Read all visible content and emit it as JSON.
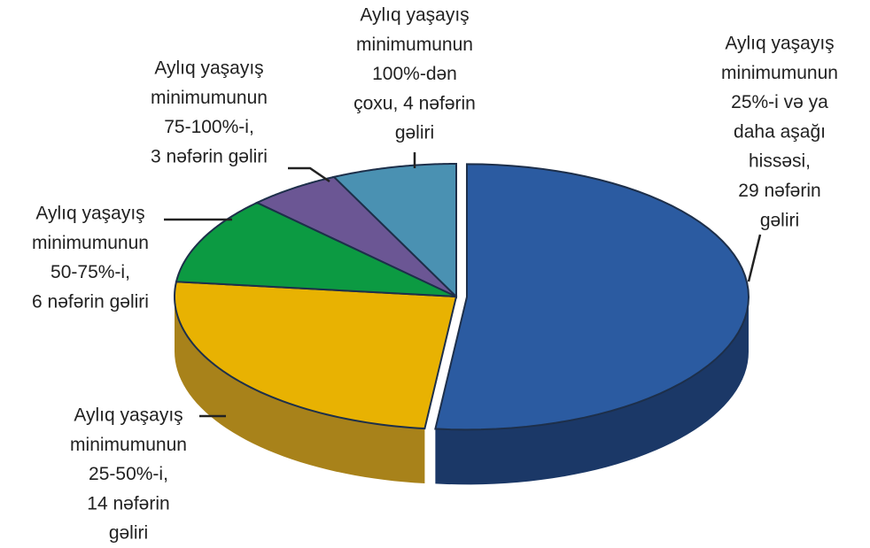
{
  "chart_data": {
    "type": "pie",
    "categories": [
      [
        "Aylıq yaşayış",
        "minimumunun",
        "25%-i və ya",
        "daha aşağı",
        "hissəsi,",
        "29 nəfərin",
        "gəliri"
      ],
      [
        "Aylıq yaşayış",
        "minimumunun",
        "25-50%-i,",
        "14 nəfərin",
        "gəliri"
      ],
      [
        "Aylıq yaşayış",
        "minimumunun",
        "50-75%-i,",
        "6 nəfərin gəliri"
      ],
      [
        "Aylıq yaşayış",
        "minimumunun",
        "75-100%-i,",
        "3 nəfərin gəliri"
      ],
      [
        "Aylıq yaşayış",
        "minimumunun",
        "100%-dən",
        "çoxu, 4 nəfərin",
        "gəliri"
      ]
    ],
    "values": [
      29,
      14,
      6,
      3,
      4
    ],
    "colors": [
      "#2b5ba1",
      "#e8b202",
      "#0c9a42",
      "#6b5694",
      "#4a91b2"
    ],
    "side_colors": [
      "#1b3867",
      "#a8821a",
      "#07652b",
      "#453661",
      "#2f6078"
    ]
  }
}
